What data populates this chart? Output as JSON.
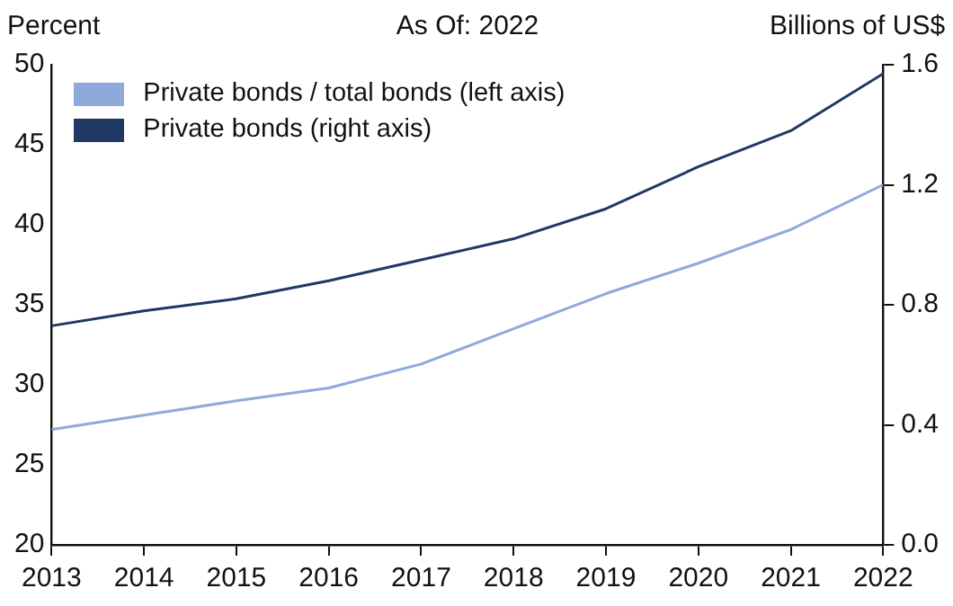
{
  "chart_data": {
    "type": "line",
    "title": "As Of: 2022",
    "ylabel": "Percent",
    "y2label": "Billions of US$",
    "x": [
      2013,
      2014,
      2015,
      2016,
      2017,
      2018,
      2019,
      2020,
      2021,
      2022
    ],
    "xlim": [
      2013,
      2022
    ],
    "xticks": [
      2013,
      2014,
      2015,
      2016,
      2017,
      2018,
      2019,
      2020,
      2021,
      2022
    ],
    "ylim": [
      20,
      50
    ],
    "yticks": [
      20,
      25,
      30,
      35,
      40,
      45,
      50
    ],
    "y2lim": [
      0,
      1.6
    ],
    "y2ticks": [
      {
        "value": 0,
        "label": "0.0"
      },
      {
        "value": 0.4,
        "label": "0.4"
      },
      {
        "value": 0.8,
        "label": "0.8"
      },
      {
        "value": 1.2,
        "label": "1.2"
      },
      {
        "value": 1.6,
        "label": "1.6"
      }
    ],
    "series": [
      {
        "name": "Private bonds / total bonds (left axis)",
        "color": "#8eaadb",
        "values": [
          27.2,
          28.1,
          29.0,
          29.8,
          31.3,
          33.5,
          35.7,
          37.6,
          39.7,
          42.5
        ]
      },
      {
        "name": "Private bonds (right axis)",
        "color": "#1f3864",
        "axis": "y2",
        "values": [
          0.73,
          0.78,
          0.82,
          0.88,
          0.95,
          1.02,
          1.12,
          1.26,
          1.38,
          1.57
        ]
      }
    ],
    "legend": "top left",
    "grid": false,
    "marker": "none",
    "line_style": "solid"
  }
}
